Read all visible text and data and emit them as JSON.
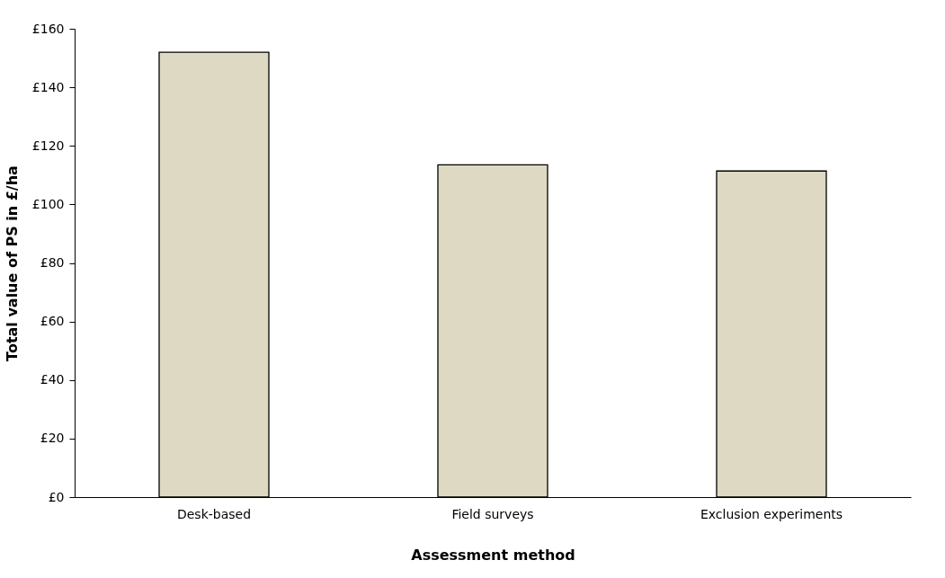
{
  "chart_data": {
    "type": "bar",
    "xlabel": "Assessment method",
    "ylabel": "Total value of PS in £/ha",
    "categories": [
      "Desk-based",
      "Field surveys",
      "Exclusion experiments"
    ],
    "values": [
      152,
      113.5,
      111.4
    ],
    "color": "#ddd9c3",
    "ylim": [
      0,
      160
    ],
    "yticks": [
      {
        "value": 0,
        "label": "£0"
      },
      {
        "value": 20,
        "label": "£20"
      },
      {
        "value": 40,
        "label": "£40"
      },
      {
        "value": 60,
        "label": "£60"
      },
      {
        "value": 80,
        "label": "£80"
      },
      {
        "value": 100,
        "label": "£100"
      },
      {
        "value": 120,
        "label": "£120"
      },
      {
        "value": 140,
        "label": "£140"
      },
      {
        "value": 160,
        "label": "£160"
      }
    ],
    "grid": false
  }
}
